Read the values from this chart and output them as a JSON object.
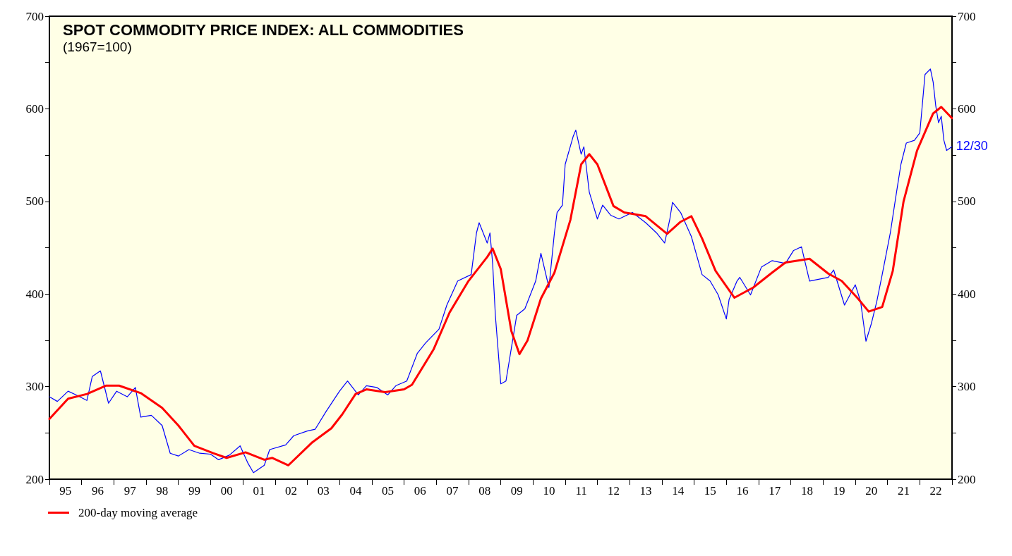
{
  "chart_data": {
    "type": "line",
    "title": "SPOT COMMODITY PRICE INDEX: ALL COMMODITIES",
    "subtitle": "(1967=100)",
    "series": [
      {
        "color": "#0000ff",
        "x": [
          "1995-01",
          "1995-04",
          "1995-08",
          "1995-11",
          "1996-03",
          "1996-05",
          "1996-08",
          "1996-11",
          "1997-02",
          "1997-06",
          "1997-09",
          "1997-11",
          "1998-03",
          "1998-07",
          "1998-10",
          "1999-01",
          "1999-05",
          "1999-09",
          "2000-01",
          "2000-04",
          "2000-08",
          "2000-12",
          "2001-03",
          "2001-05",
          "2001-09",
          "2001-11",
          "2002-05",
          "2002-08",
          "2003-01",
          "2003-04",
          "2003-08",
          "2004-01",
          "2004-04",
          "2004-08",
          "2004-11",
          "2005-03",
          "2005-07",
          "2005-10",
          "2006-02",
          "2006-06",
          "2006-09",
          "2007-02",
          "2007-05",
          "2007-09",
          "2008-02",
          "2008-04",
          "2008-05",
          "2008-08",
          "2008-09",
          "2008-10",
          "2008-11",
          "2009-01",
          "2009-03",
          "2009-07",
          "2009-10",
          "2010-02",
          "2010-04",
          "2010-07",
          "2010-09",
          "2010-10",
          "2010-12",
          "2011-01",
          "2011-04",
          "2011-05",
          "2011-07",
          "2011-08",
          "2011-10",
          "2012-01",
          "2012-03",
          "2012-06",
          "2012-09",
          "2013-02",
          "2013-07",
          "2013-11",
          "2014-02",
          "2014-04",
          "2014-05",
          "2014-08",
          "2014-12",
          "2015-04",
          "2015-07",
          "2015-10",
          "2016-01",
          "2016-02",
          "2016-05",
          "2016-06",
          "2016-10",
          "2017-02",
          "2017-06",
          "2017-11",
          "2018-02",
          "2018-05",
          "2018-08",
          "2019-03",
          "2019-05",
          "2019-09",
          "2020-01",
          "2020-03",
          "2020-05",
          "2020-07",
          "2020-09",
          "2020-11",
          "2021-02",
          "2021-04",
          "2021-06",
          "2021-08",
          "2021-11",
          "2022-01",
          "2022-02",
          "2022-03",
          "2022-05",
          "2022-06",
          "2022-07",
          "2022-08",
          "2022-09",
          "2022-10",
          "2022-11",
          "2022-12-30"
        ],
        "values": [
          289,
          284,
          295,
          291,
          285,
          311,
          317,
          282,
          295,
          289,
          299,
          267,
          269,
          258,
          228,
          225,
          232,
          228,
          227,
          221,
          226,
          236,
          217,
          207,
          215,
          232,
          237,
          247,
          252,
          254,
          273,
          295,
          306,
          291,
          301,
          299,
          291,
          301,
          306,
          336,
          347,
          362,
          388,
          414,
          421,
          466,
          477,
          455,
          466,
          433,
          377,
          303,
          306,
          377,
          384,
          414,
          444,
          407,
          466,
          488,
          496,
          540,
          570,
          577,
          551,
          559,
          510,
          481,
          496,
          485,
          481,
          488,
          477,
          466,
          455,
          481,
          499,
          488,
          462,
          421,
          414,
          399,
          373,
          394,
          414,
          418,
          399,
          429,
          436,
          433,
          447,
          451,
          414,
          418,
          426,
          388,
          410,
          392,
          349,
          368,
          392,
          421,
          466,
          503,
          540,
          563,
          566,
          574,
          607,
          637,
          643,
          629,
          603,
          585,
          592,
          566,
          555,
          559
        ]
      },
      {
        "name": "200-day moving average",
        "color": "#ff0000",
        "x": [
          "1995-01",
          "1995-08",
          "1996-03",
          "1996-10",
          "1997-03",
          "1997-11",
          "1998-07",
          "1999-01",
          "1999-07",
          "2000-02",
          "2000-07",
          "2001-02",
          "2001-09",
          "2001-12",
          "2002-06",
          "2003-03",
          "2003-10",
          "2004-02",
          "2004-07",
          "2004-11",
          "2005-06",
          "2006-01",
          "2006-04",
          "2006-12",
          "2007-06",
          "2008-01",
          "2008-08",
          "2008-10",
          "2009-01",
          "2009-05",
          "2009-08",
          "2009-11",
          "2010-04",
          "2010-09",
          "2011-03",
          "2011-07",
          "2011-10",
          "2012-01",
          "2012-07",
          "2012-11",
          "2013-07",
          "2014-03",
          "2014-08",
          "2014-12",
          "2015-04",
          "2015-09",
          "2016-04",
          "2016-11",
          "2017-06",
          "2017-11",
          "2018-08",
          "2019-03",
          "2019-08",
          "2020-02",
          "2020-06",
          "2020-11",
          "2021-03",
          "2021-07",
          "2021-12",
          "2022-06",
          "2022-09",
          "2022-12-30"
        ],
        "values": [
          265,
          287,
          292,
          301,
          301,
          293,
          277,
          258,
          236,
          228,
          223,
          229,
          221,
          223,
          215,
          240,
          255,
          270,
          292,
          297,
          294,
          297,
          302,
          340,
          380,
          414,
          440,
          449,
          427,
          360,
          335,
          350,
          395,
          423,
          480,
          540,
          551,
          540,
          495,
          488,
          484,
          465,
          478,
          484,
          460,
          425,
          396,
          407,
          423,
          434,
          438,
          422,
          414,
          395,
          381,
          386,
          425,
          500,
          555,
          595,
          602,
          590
        ]
      }
    ],
    "xlim": [
      "1995-01-01",
      "2023-01-01"
    ],
    "xticks": [
      {
        "value": "1995-01-01",
        "label": null
      },
      {
        "value": "1995-07-02",
        "label": "95"
      },
      {
        "value": "1996-01-01",
        "label": null
      },
      {
        "value": "1996-07-02",
        "label": "96"
      },
      {
        "value": "1997-01-01",
        "label": null
      },
      {
        "value": "1997-07-02",
        "label": "97"
      },
      {
        "value": "1998-01-01",
        "label": null
      },
      {
        "value": "1998-07-02",
        "label": "98"
      },
      {
        "value": "1999-01-01",
        "label": null
      },
      {
        "value": "1999-07-02",
        "label": "99"
      },
      {
        "value": "2000-01-01",
        "label": null
      },
      {
        "value": "2000-07-02",
        "label": "00"
      },
      {
        "value": "2001-01-01",
        "label": null
      },
      {
        "value": "2001-07-02",
        "label": "01"
      },
      {
        "value": "2002-01-01",
        "label": null
      },
      {
        "value": "2002-07-02",
        "label": "02"
      },
      {
        "value": "2003-01-01",
        "label": null
      },
      {
        "value": "2003-07-02",
        "label": "03"
      },
      {
        "value": "2004-01-01",
        "label": null
      },
      {
        "value": "2004-07-02",
        "label": "04"
      },
      {
        "value": "2005-01-01",
        "label": null
      },
      {
        "value": "2005-07-02",
        "label": "05"
      },
      {
        "value": "2006-01-01",
        "label": null
      },
      {
        "value": "2006-07-02",
        "label": "06"
      },
      {
        "value": "2007-01-01",
        "label": null
      },
      {
        "value": "2007-07-02",
        "label": "07"
      },
      {
        "value": "2008-01-01",
        "label": null
      },
      {
        "value": "2008-07-02",
        "label": "08"
      },
      {
        "value": "2009-01-01",
        "label": null
      },
      {
        "value": "2009-07-02",
        "label": "09"
      },
      {
        "value": "2010-01-01",
        "label": null
      },
      {
        "value": "2010-07-02",
        "label": "10"
      },
      {
        "value": "2011-01-01",
        "label": null
      },
      {
        "value": "2011-07-02",
        "label": "11"
      },
      {
        "value": "2012-01-01",
        "label": null
      },
      {
        "value": "2012-07-02",
        "label": "12"
      },
      {
        "value": "2013-01-01",
        "label": null
      },
      {
        "value": "2013-07-02",
        "label": "13"
      },
      {
        "value": "2014-01-01",
        "label": null
      },
      {
        "value": "2014-07-02",
        "label": "14"
      },
      {
        "value": "2015-01-01",
        "label": null
      },
      {
        "value": "2015-07-02",
        "label": "15"
      },
      {
        "value": "2016-01-01",
        "label": null
      },
      {
        "value": "2016-07-02",
        "label": "16"
      },
      {
        "value": "2017-01-01",
        "label": null
      },
      {
        "value": "2017-07-02",
        "label": "17"
      },
      {
        "value": "2018-01-01",
        "label": null
      },
      {
        "value": "2018-07-02",
        "label": "18"
      },
      {
        "value": "2019-01-01",
        "label": null
      },
      {
        "value": "2019-07-02",
        "label": "19"
      },
      {
        "value": "2020-01-01",
        "label": null
      },
      {
        "value": "2020-07-02",
        "label": "20"
      },
      {
        "value": "2021-01-01",
        "label": null
      },
      {
        "value": "2021-07-02",
        "label": "21"
      },
      {
        "value": "2022-01-01",
        "label": null
      },
      {
        "value": "2022-07-02",
        "label": "22"
      },
      {
        "value": "2023-01-01",
        "label": null
      }
    ],
    "ylim": [
      200,
      700
    ],
    "yticks": [
      200,
      {
        "value": 250,
        "label": null
      },
      300,
      {
        "value": 350,
        "label": null
      },
      400,
      {
        "value": 450,
        "label": null
      },
      500,
      {
        "value": 550,
        "label": null
      },
      600,
      {
        "value": 650,
        "label": null
      },
      700
    ],
    "y2lim": [
      200,
      700
    ],
    "y2ticks": [
      200,
      {
        "value": 250,
        "label": null
      },
      300,
      {
        "value": 350,
        "label": null
      },
      400,
      {
        "value": 450,
        "label": null
      },
      500,
      {
        "value": 550,
        "label": null
      },
      600,
      {
        "value": 650,
        "label": null
      },
      700
    ],
    "annotations": [
      {
        "text": "12/30",
        "x": "2022-12-30",
        "y": 559
      }
    ],
    "grid": false,
    "legend": "bottom left",
    "marker": "none",
    "line_style": "solid"
  }
}
